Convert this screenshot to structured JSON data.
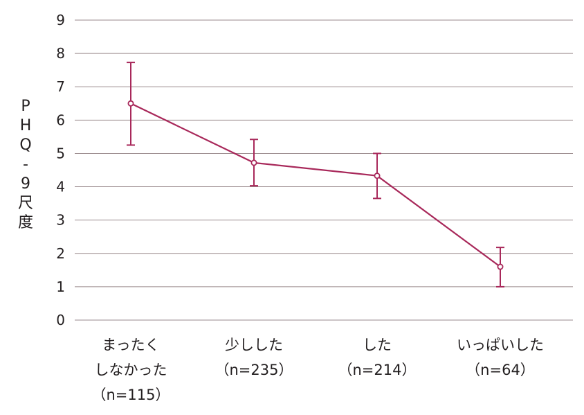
{
  "chart_data": {
    "type": "line",
    "title": "",
    "xlabel": "",
    "ylabel": "PHQ-9尺度",
    "ylim": [
      0,
      9
    ],
    "yticks": [
      "0",
      "1",
      "2",
      "3",
      "4",
      "5",
      "6",
      "7",
      "8",
      "9"
    ],
    "grid": true,
    "categories": [
      {
        "lines": [
          "まったく",
          "しなかった"
        ],
        "n_label": "（n=115）"
      },
      {
        "lines": [
          "少しした"
        ],
        "n_label": "（n=235）"
      },
      {
        "lines": [
          "した"
        ],
        "n_label": "（n=214）"
      },
      {
        "lines": [
          "いっぱいした"
        ],
        "n_label": "（n=64）"
      }
    ],
    "series": [
      {
        "values": [
          6.5,
          4.72,
          4.33,
          1.6
        ],
        "error_low": [
          5.25,
          4.03,
          3.65,
          1.0
        ],
        "error_high": [
          7.73,
          5.42,
          5.0,
          2.18
        ]
      }
    ],
    "colors": {
      "series": "#a8285a",
      "grid": "#9a8a8c",
      "text": "#231f20"
    }
  }
}
